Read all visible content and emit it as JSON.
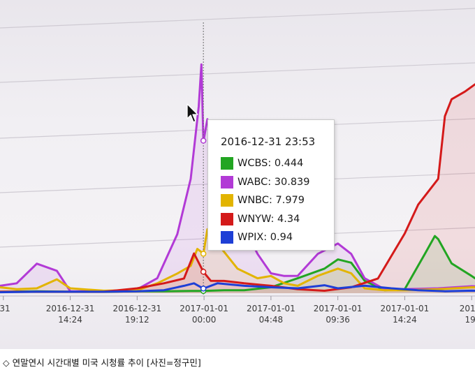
{
  "chart_data": {
    "type": "line",
    "x_ticks": [
      "-31",
      "2016-12-31\n14:24",
      "2016-12-31\n19:12",
      "2017-01-01\n00:00",
      "2017-01-01\n04:48",
      "2017-01-01\n09:36",
      "2017-01-01\n14:24",
      "2017-\n19:"
    ],
    "x_tick_pos": [
      0,
      1,
      2,
      3,
      4,
      5,
      6,
      7
    ],
    "x_range": [
      -0.05,
      7.05
    ],
    "ylim": [
      0,
      48
    ],
    "grid": "horizontal",
    "hover_x": 2.99,
    "series": [
      {
        "name": "WCBS",
        "color": "#22a522",
        "fill": true,
        "x": [
          -0.05,
          0.5,
          1.0,
          1.5,
          2.0,
          2.4,
          2.8,
          2.99,
          3.3,
          3.6,
          4.0,
          4.4,
          4.8,
          5.0,
          5.2,
          5.4,
          5.7,
          6.0,
          6.3,
          6.45,
          6.5,
          6.7,
          7.0,
          7.05
        ],
        "y": [
          0.3,
          0.4,
          0.3,
          0.3,
          0.4,
          0.4,
          0.45,
          0.444,
          0.6,
          0.6,
          1.2,
          3.0,
          5.0,
          6.8,
          6.2,
          2.5,
          0.6,
          0.8,
          8.0,
          11.5,
          11.0,
          6.0,
          3.5,
          3.0
        ]
      },
      {
        "name": "WABC",
        "color": "#b23ad6",
        "fill": true,
        "x": [
          -0.05,
          0.2,
          0.5,
          0.8,
          1.0,
          1.5,
          2.0,
          2.3,
          2.6,
          2.8,
          2.92,
          2.96,
          2.99,
          3.05,
          3.2,
          3.5,
          3.8,
          4.0,
          4.2,
          4.4,
          4.7,
          5.0,
          5.2,
          5.4,
          5.7,
          6.0,
          6.5,
          7.0,
          7.05
        ],
        "y": [
          1.5,
          2.0,
          6.0,
          4.5,
          0.4,
          0.4,
          0.8,
          3.0,
          12.0,
          23.0,
          38.0,
          46.0,
          30.839,
          35.0,
          26.0,
          16.0,
          8.0,
          4.0,
          3.5,
          3.5,
          8.0,
          10.0,
          8.0,
          3.0,
          0.8,
          0.8,
          1.0,
          1.4,
          1.4
        ]
      },
      {
        "name": "WNBC",
        "color": "#e2b400",
        "fill": true,
        "x": [
          -0.05,
          0.2,
          0.5,
          0.8,
          1.0,
          1.5,
          2.0,
          2.3,
          2.6,
          2.8,
          2.9,
          2.99,
          3.05,
          3.2,
          3.5,
          3.8,
          4.0,
          4.2,
          4.4,
          4.7,
          5.0,
          5.2,
          5.4,
          5.7,
          6.0,
          6.5,
          7.0,
          7.05
        ],
        "y": [
          1.2,
          0.8,
          1.0,
          2.8,
          1.0,
          0.5,
          0.6,
          2.0,
          4.0,
          5.5,
          9.0,
          7.979,
          13.0,
          10.0,
          5.0,
          3.0,
          3.5,
          2.0,
          1.5,
          3.5,
          5.0,
          4.0,
          1.0,
          0.6,
          0.6,
          0.8,
          1.2,
          1.2
        ]
      },
      {
        "name": "WNYW",
        "color": "#d41a1a",
        "fill": true,
        "x": [
          -0.05,
          0.5,
          1.0,
          1.5,
          2.0,
          2.4,
          2.7,
          2.85,
          2.99,
          3.1,
          3.3,
          3.6,
          4.0,
          4.4,
          4.8,
          5.2,
          5.6,
          6.0,
          6.2,
          6.5,
          6.6,
          6.7,
          6.9,
          7.05
        ],
        "y": [
          0.3,
          0.3,
          0.3,
          0.3,
          1.0,
          2.0,
          3.0,
          8.0,
          4.34,
          2.5,
          2.5,
          2.0,
          1.5,
          0.8,
          0.5,
          1.2,
          3.0,
          12.0,
          18.0,
          23.0,
          36.0,
          39.0,
          41.0,
          42.0
        ]
      },
      {
        "name": "WPIX",
        "color": "#1e3fd6",
        "fill": false,
        "x": [
          -0.05,
          0.5,
          1.0,
          1.5,
          2.0,
          2.4,
          2.7,
          2.85,
          2.99,
          3.2,
          3.6,
          4.0,
          4.4,
          4.8,
          5.0,
          5.4,
          5.8,
          6.2,
          6.6,
          7.0,
          7.05
        ],
        "y": [
          0.2,
          0.3,
          0.3,
          0.3,
          0.4,
          0.6,
          1.5,
          2.0,
          0.94,
          2.0,
          1.5,
          1.2,
          1.0,
          1.6,
          1.0,
          1.5,
          1.0,
          0.6,
          0.4,
          0.5,
          0.5
        ]
      }
    ]
  },
  "tooltip": {
    "title": "2016-12-31 23:53",
    "rows": [
      {
        "label": "WCBS: 0.444",
        "color": "#22a522"
      },
      {
        "label": "WABC: 30.839",
        "color": "#b23ad6"
      },
      {
        "label": "WNBC: 7.979",
        "color": "#e2b400"
      },
      {
        "label": "WNYW: 4.34",
        "color": "#d41a1a"
      },
      {
        "label": "WPIX: 0.94",
        "color": "#1e3fd6"
      }
    ]
  },
  "caption": {
    "mark": "◇",
    "text": "연말연시 시간대별 미국 시청률 추이 [사진=정구민]"
  }
}
